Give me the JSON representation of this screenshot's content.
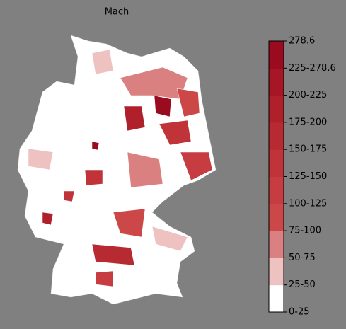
{
  "title": "Mach",
  "colorbar": {
    "labels": [
      "0-25",
      "25-50",
      "50-75",
      "75-100",
      "100-125",
      "125-150",
      "150-175",
      "175-200",
      "200-225",
      "225-278.6",
      "278.6"
    ],
    "colors": [
      "#ffffff",
      "#efc2c2",
      "#db8080",
      "#cc4848",
      "#c63c40",
      "#c03338",
      "#b82a31",
      "#b0202b",
      "#a61625",
      "#9a0b1f"
    ]
  }
}
